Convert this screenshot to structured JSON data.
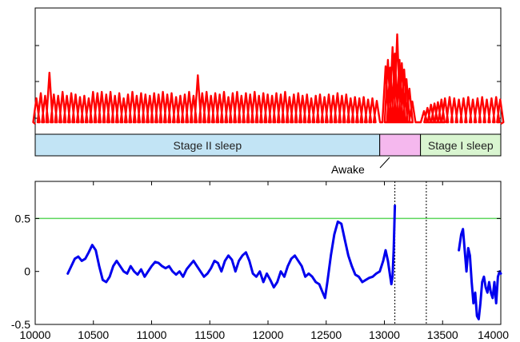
{
  "chart_data": [
    {
      "type": "line",
      "panel": "top",
      "series": [
        {
          "color": "#ff0000",
          "peaks": [
            [
              10010,
              0.4
            ],
            [
              10048,
              0.48
            ],
            [
              10085,
              0.44
            ],
            [
              10122,
              0.8
            ],
            [
              10160,
              0.46
            ],
            [
              10197,
              0.44
            ],
            [
              10235,
              0.5
            ],
            [
              10272,
              0.44
            ],
            [
              10310,
              0.48
            ],
            [
              10347,
              0.46
            ],
            [
              10385,
              0.42
            ],
            [
              10422,
              0.44
            ],
            [
              10460,
              0.4
            ],
            [
              10497,
              0.5
            ],
            [
              10535,
              0.48
            ],
            [
              10572,
              0.5
            ],
            [
              10610,
              0.46
            ],
            [
              10647,
              0.5
            ],
            [
              10685,
              0.44
            ],
            [
              10722,
              0.48
            ],
            [
              10760,
              0.4
            ],
            [
              10797,
              0.46
            ],
            [
              10835,
              0.5
            ],
            [
              10872,
              0.44
            ],
            [
              10910,
              0.48
            ],
            [
              10947,
              0.46
            ],
            [
              10985,
              0.44
            ],
            [
              11022,
              0.48
            ],
            [
              11060,
              0.46
            ],
            [
              11097,
              0.5
            ],
            [
              11135,
              0.46
            ],
            [
              11172,
              0.48
            ],
            [
              11210,
              0.42
            ],
            [
              11247,
              0.44
            ],
            [
              11285,
              0.46
            ],
            [
              11322,
              0.5
            ],
            [
              11360,
              0.44
            ],
            [
              11397,
              0.76
            ],
            [
              11435,
              0.48
            ],
            [
              11472,
              0.5
            ],
            [
              11510,
              0.44
            ],
            [
              11547,
              0.48
            ],
            [
              11585,
              0.46
            ],
            [
              11622,
              0.5
            ],
            [
              11660,
              0.42
            ],
            [
              11697,
              0.48
            ],
            [
              11735,
              0.5
            ],
            [
              11772,
              0.44
            ],
            [
              11810,
              0.48
            ],
            [
              11847,
              0.46
            ],
            [
              11885,
              0.5
            ],
            [
              11922,
              0.44
            ],
            [
              11960,
              0.48
            ],
            [
              11997,
              0.46
            ],
            [
              12035,
              0.44
            ],
            [
              12072,
              0.48
            ],
            [
              12110,
              0.46
            ],
            [
              12147,
              0.5
            ],
            [
              12185,
              0.42
            ],
            [
              12222,
              0.46
            ],
            [
              12260,
              0.48
            ],
            [
              12297,
              0.44
            ],
            [
              12335,
              0.46
            ],
            [
              12372,
              0.4
            ],
            [
              12410,
              0.44
            ],
            [
              12447,
              0.46
            ],
            [
              12485,
              0.42
            ],
            [
              12522,
              0.46
            ],
            [
              12560,
              0.44
            ],
            [
              12597,
              0.48
            ],
            [
              12635,
              0.44
            ],
            [
              12672,
              0.46
            ],
            [
              12710,
              0.4
            ],
            [
              12747,
              0.42
            ],
            [
              12785,
              0.4
            ],
            [
              12822,
              0.42
            ],
            [
              12860,
              0.38
            ],
            [
              12897,
              0.4
            ],
            [
              12935,
              0.36
            ],
            [
              13010,
              0.9
            ],
            [
              13030,
              1.0
            ],
            [
              13050,
              0.88
            ],
            [
              13070,
              1.2
            ],
            [
              13090,
              1.1
            ],
            [
              13110,
              1.4
            ],
            [
              13130,
              1.0
            ],
            [
              13150,
              0.95
            ],
            [
              13170,
              0.85
            ],
            [
              13190,
              0.7
            ],
            [
              13215,
              0.55
            ],
            [
              13240,
              0.35
            ],
            [
              13340,
              0.2
            ],
            [
              13370,
              0.25
            ],
            [
              13400,
              0.3
            ],
            [
              13430,
              0.32
            ],
            [
              13460,
              0.34
            ],
            [
              13490,
              0.38
            ],
            [
              13520,
              0.4
            ],
            [
              13560,
              0.42
            ],
            [
              13600,
              0.4
            ],
            [
              13640,
              0.38
            ],
            [
              13680,
              0.4
            ],
            [
              13720,
              0.42
            ],
            [
              13760,
              0.38
            ],
            [
              13800,
              0.4
            ],
            [
              13840,
              0.42
            ],
            [
              13880,
              0.38
            ],
            [
              13920,
              0.4
            ],
            [
              13960,
              0.42
            ],
            [
              13995,
              0.38
            ]
          ]
        }
      ],
      "xlim": [
        10000,
        14000
      ],
      "stages": [
        {
          "label": "Stage II sleep",
          "start": 10000,
          "end": 12960,
          "color": "#c2e4f5"
        },
        {
          "label": "",
          "start": 12960,
          "end": 13310,
          "color": "#f5b8ee"
        },
        {
          "label": "Stage I sleep",
          "start": 13310,
          "end": 14000,
          "color": "#d9f5d0"
        }
      ],
      "annotation": "Awake"
    },
    {
      "type": "line",
      "panel": "bottom",
      "xlim": [
        10000,
        14000
      ],
      "ylim": [
        -0.5,
        0.85
      ],
      "xticks": [
        "10000",
        "10500",
        "11000",
        "11500",
        "12000",
        "12500",
        "13000",
        "13500",
        "14000"
      ],
      "yticks": [
        "0.5",
        "0",
        "-0.5"
      ],
      "threshold": {
        "y": 0.5,
        "color": "#5cd65c"
      },
      "vlines": [
        13090,
        13360
      ],
      "series": [
        {
          "color": "#0000ee",
          "segments": [
            [
              [
                10280,
                -0.02
              ],
              [
                10310,
                0.05
              ],
              [
                10340,
                0.12
              ],
              [
                10370,
                0.14
              ],
              [
                10400,
                0.1
              ],
              [
                10430,
                0.12
              ],
              [
                10460,
                0.18
              ],
              [
                10490,
                0.25
              ],
              [
                10520,
                0.2
              ],
              [
                10550,
                0.05
              ],
              [
                10580,
                -0.08
              ],
              [
                10610,
                -0.1
              ],
              [
                10640,
                -0.05
              ],
              [
                10670,
                0.05
              ],
              [
                10700,
                0.1
              ],
              [
                10730,
                0.05
              ],
              [
                10760,
                0.0
              ],
              [
                10790,
                -0.02
              ],
              [
                10820,
                0.05
              ],
              [
                10850,
                0.0
              ],
              [
                10880,
                -0.03
              ],
              [
                10910,
                0.02
              ],
              [
                10940,
                -0.05
              ],
              [
                10970,
                0.0
              ],
              [
                11000,
                0.05
              ],
              [
                11030,
                0.09
              ],
              [
                11060,
                0.08
              ],
              [
                11090,
                0.05
              ],
              [
                11120,
                0.03
              ],
              [
                11150,
                0.05
              ],
              [
                11180,
                0.0
              ],
              [
                11210,
                -0.03
              ],
              [
                11240,
                0.0
              ],
              [
                11270,
                -0.05
              ],
              [
                11300,
                0.02
              ],
              [
                11330,
                0.06
              ],
              [
                11360,
                0.1
              ],
              [
                11390,
                0.05
              ],
              [
                11420,
                0.0
              ],
              [
                11450,
                -0.05
              ],
              [
                11480,
                -0.02
              ],
              [
                11510,
                0.03
              ],
              [
                11540,
                0.1
              ],
              [
                11570,
                0.08
              ],
              [
                11600,
                0.0
              ],
              [
                11630,
                0.1
              ],
              [
                11660,
                0.15
              ],
              [
                11690,
                0.11
              ],
              [
                11720,
                0.0
              ],
              [
                11750,
                0.1
              ],
              [
                11780,
                0.15
              ],
              [
                11810,
                0.18
              ],
              [
                11840,
                0.1
              ],
              [
                11870,
                -0.02
              ],
              [
                11900,
                -0.05
              ],
              [
                11930,
                0.0
              ],
              [
                11960,
                -0.1
              ],
              [
                11990,
                -0.02
              ],
              [
                12020,
                -0.08
              ],
              [
                12050,
                -0.15
              ],
              [
                12080,
                -0.1
              ],
              [
                12110,
                0.0
              ],
              [
                12140,
                -0.05
              ],
              [
                12170,
                0.05
              ],
              [
                12200,
                0.12
              ],
              [
                12230,
                0.15
              ],
              [
                12260,
                0.1
              ],
              [
                12290,
                0.05
              ],
              [
                12320,
                -0.05
              ],
              [
                12350,
                -0.02
              ],
              [
                12380,
                -0.05
              ],
              [
                12410,
                -0.1
              ],
              [
                12440,
                -0.12
              ],
              [
                12470,
                -0.2
              ],
              [
                12490,
                -0.25
              ],
              [
                12510,
                -0.1
              ],
              [
                12540,
                0.15
              ],
              [
                12570,
                0.35
              ],
              [
                12600,
                0.47
              ],
              [
                12630,
                0.45
              ],
              [
                12660,
                0.3
              ],
              [
                12690,
                0.15
              ],
              [
                12720,
                0.05
              ],
              [
                12750,
                -0.03
              ],
              [
                12780,
                -0.05
              ],
              [
                12810,
                -0.1
              ],
              [
                12840,
                -0.08
              ],
              [
                12870,
                -0.06
              ],
              [
                12900,
                -0.05
              ],
              [
                12930,
                -0.02
              ],
              [
                12960,
                0.0
              ],
              [
                12990,
                0.1
              ],
              [
                13010,
                0.2
              ],
              [
                13030,
                0.1
              ],
              [
                13050,
                -0.05
              ],
              [
                13060,
                -0.12
              ],
              [
                13070,
                -0.05
              ],
              [
                13080,
                0.2
              ],
              [
                13090,
                0.62
              ]
            ],
            [
              [
                13640,
                0.2
              ],
              [
                13660,
                0.35
              ],
              [
                13675,
                0.4
              ],
              [
                13690,
                0.2
              ],
              [
                13705,
                0.0
              ],
              [
                13720,
                0.22
              ],
              [
                13735,
                0.15
              ],
              [
                13750,
                -0.1
              ],
              [
                13765,
                -0.3
              ],
              [
                13780,
                -0.2
              ],
              [
                13795,
                -0.42
              ],
              [
                13810,
                -0.45
              ],
              [
                13825,
                -0.3
              ],
              [
                13840,
                -0.1
              ],
              [
                13855,
                -0.05
              ],
              [
                13870,
                -0.15
              ],
              [
                13885,
                -0.2
              ],
              [
                13900,
                -0.1
              ],
              [
                13915,
                -0.2
              ],
              [
                13930,
                -0.25
              ],
              [
                13945,
                -0.1
              ],
              [
                13960,
                -0.3
              ],
              [
                13975,
                -0.05
              ],
              [
                13990,
                0.0
              ],
              [
                14000,
                -0.02
              ]
            ]
          ]
        }
      ]
    }
  ]
}
